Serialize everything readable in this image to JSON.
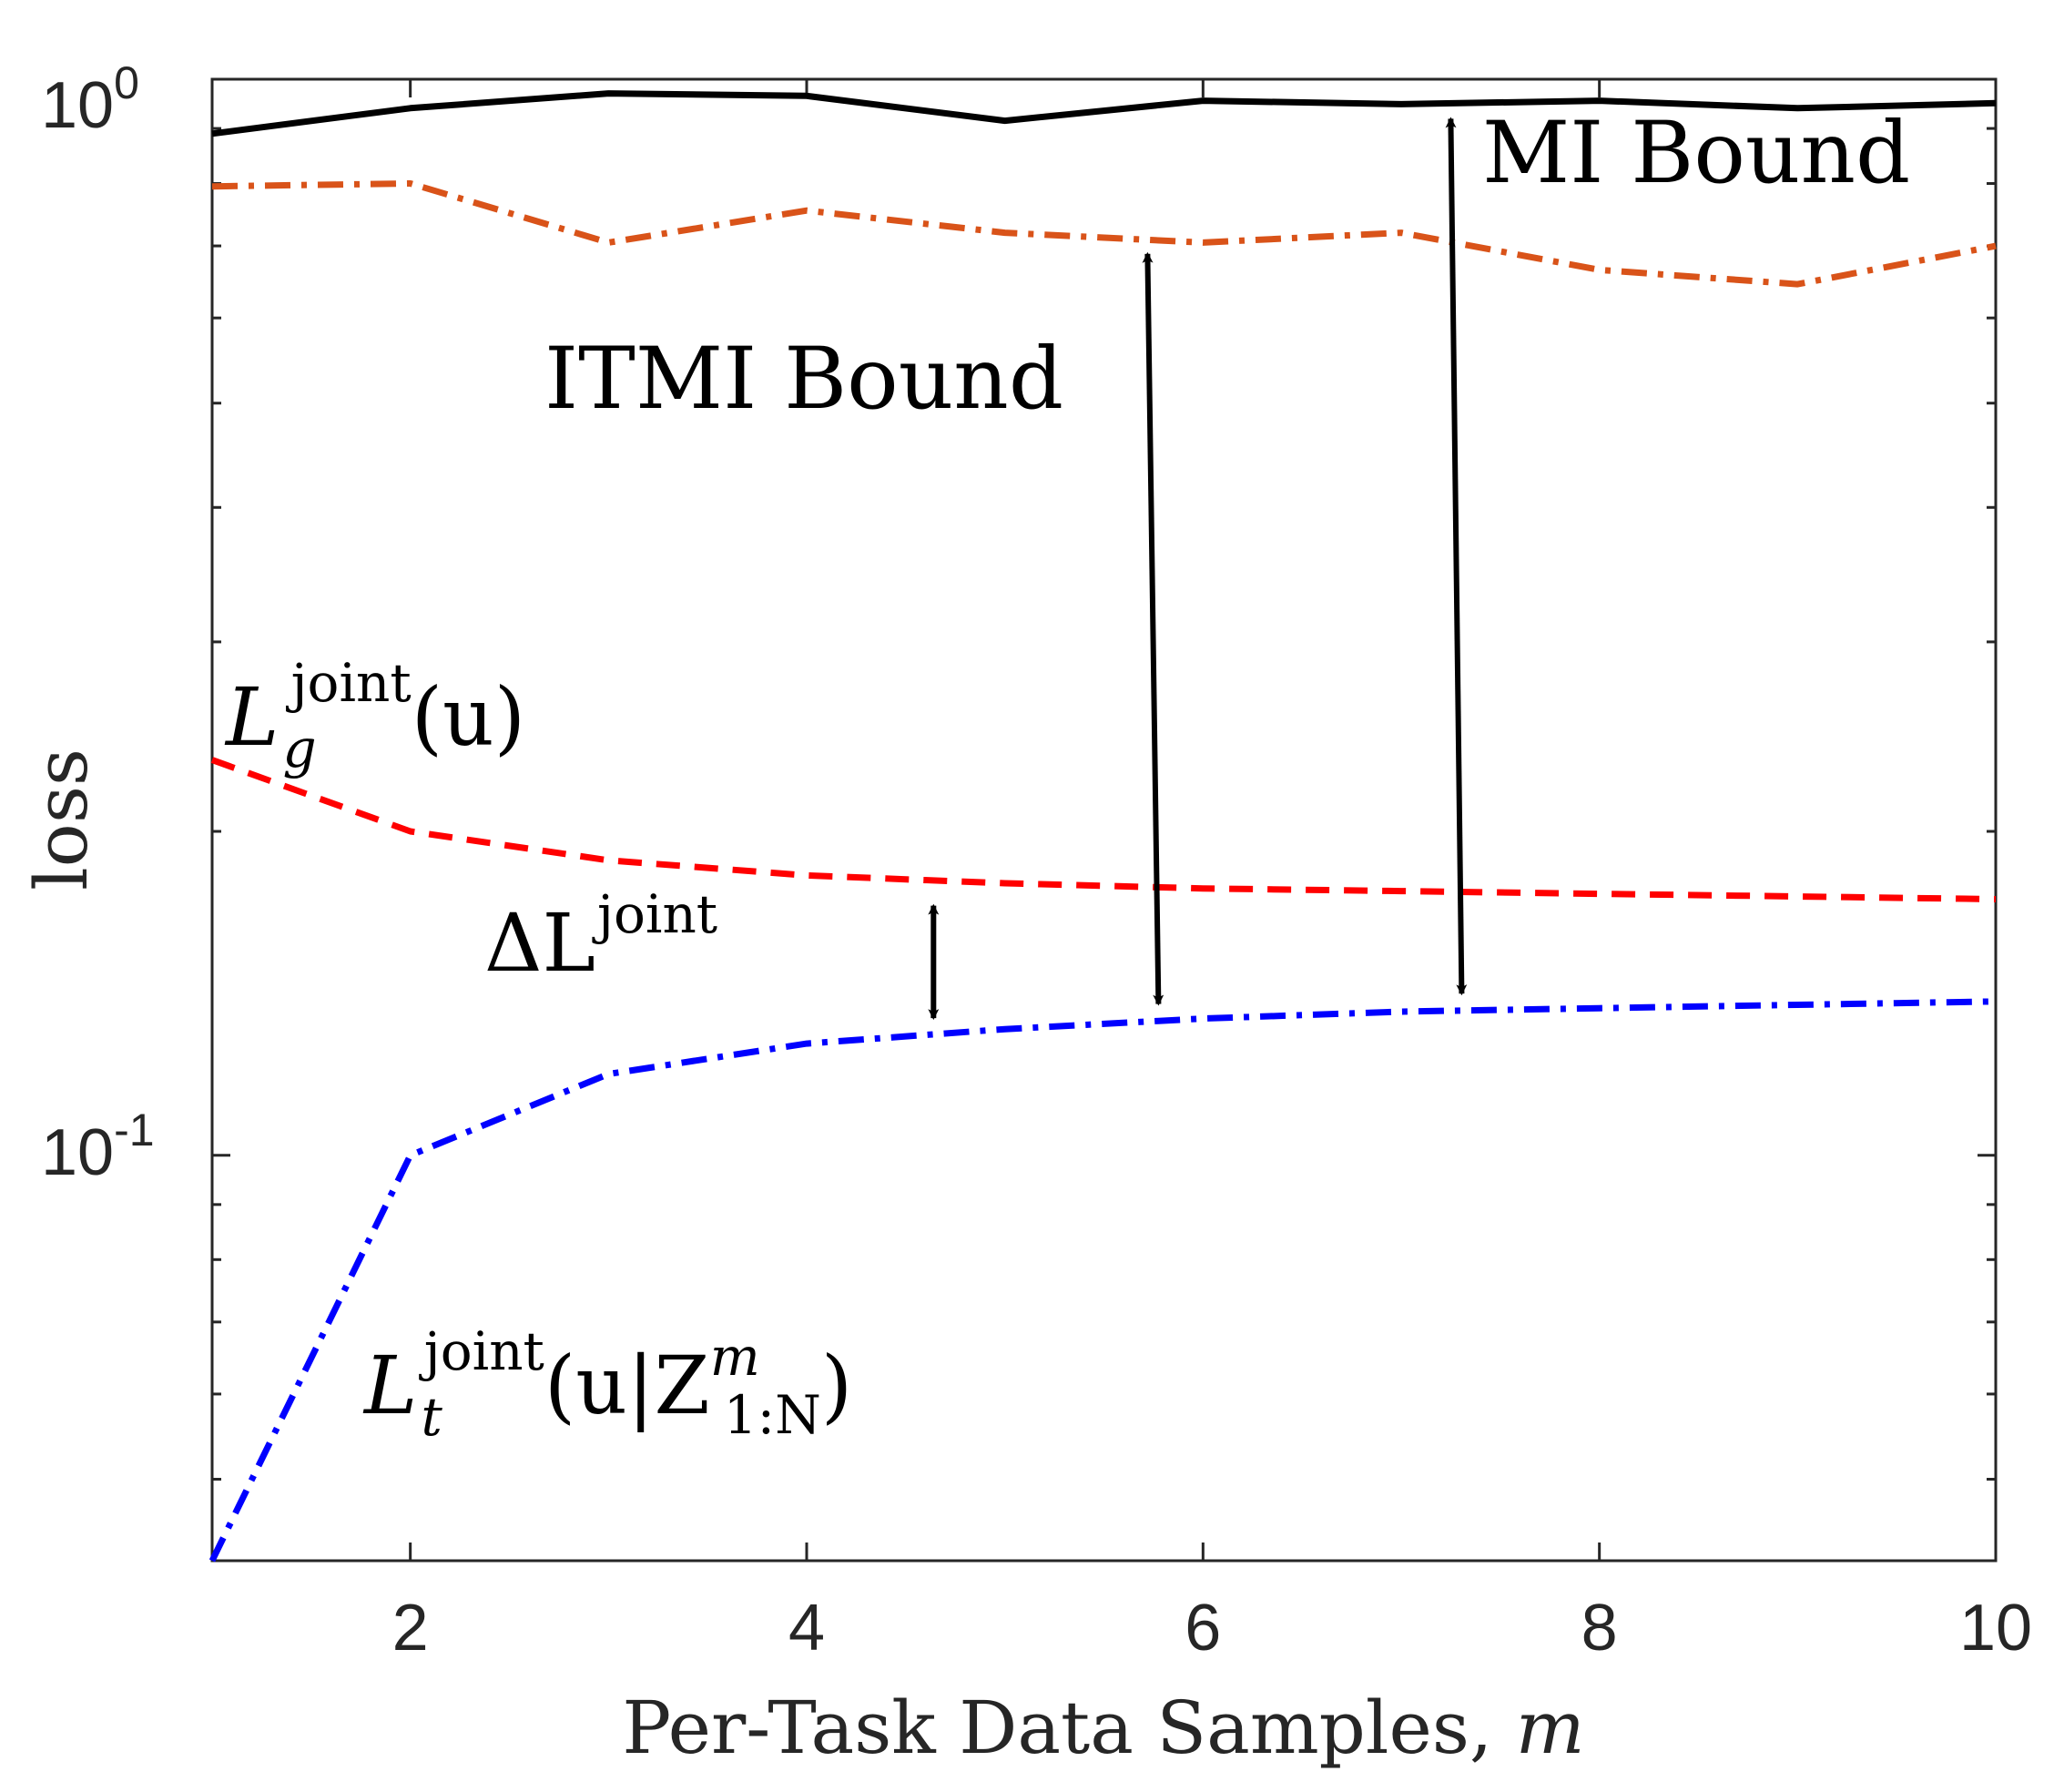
{
  "chart_data": {
    "type": "line",
    "title": "",
    "xlabel": "Per-Task Data Samples, m",
    "xlabel_parts": {
      "text": "Per-Task Data Samples, ",
      "var": "m"
    },
    "ylabel": "loss",
    "xlim": [
      1,
      10
    ],
    "ylim": [
      0.042,
      1.0
    ],
    "yscale": "log",
    "grid": false,
    "x": [
      1,
      2,
      3,
      4,
      5,
      6,
      7,
      8,
      9,
      10
    ],
    "xticks": [
      2,
      4,
      6,
      8,
      10
    ],
    "xtick_labels": [
      "2",
      "4",
      "6",
      "8",
      "10"
    ],
    "yticks": [
      0.1,
      1.0
    ],
    "ytick_labels": [
      {
        "base": "10",
        "exp": "-1"
      },
      {
        "base": "10",
        "exp": "0"
      }
    ],
    "series": [
      {
        "name": "MI Bound",
        "style": "solid",
        "color": "#000000",
        "values": [
          0.89,
          0.94,
          0.97,
          0.965,
          0.915,
          0.955,
          0.948,
          0.955,
          0.94,
          0.95
        ]
      },
      {
        "name": "ITMI Bound",
        "style": "dashdot",
        "color": "#D95319",
        "values": [
          0.795,
          0.8,
          0.705,
          0.755,
          0.72,
          0.705,
          0.72,
          0.665,
          0.645,
          0.7
        ]
      },
      {
        "name": "L_g^joint(u)",
        "style": "dashed",
        "color": "#FF0000",
        "values": [
          0.233,
          0.2,
          0.188,
          0.182,
          0.179,
          0.177,
          0.176,
          0.175,
          0.174,
          0.173
        ]
      },
      {
        "name": "L_t^joint(u|Z_1:N^m)",
        "style": "dashdot",
        "color": "#0000FF",
        "values": [
          0.042,
          0.1,
          0.119,
          0.127,
          0.131,
          0.134,
          0.136,
          0.137,
          0.138,
          0.139
        ]
      }
    ],
    "annotations": {
      "mi_bound": "MI Bound",
      "itmi_bound": "ITMI Bound",
      "delta": {
        "symbol": "ΔL",
        "sup": "joint"
      },
      "lg": {
        "L": "L",
        "sub": "g",
        "sup": "joint",
        "arg": "(u)"
      },
      "lt": {
        "L": "L",
        "sub": "t",
        "sup": "joint",
        "arg_open": "(u|Z",
        "arg_sup": "m",
        "arg_sub": "1:N",
        "arg_close": ")"
      }
    },
    "double_arrows": [
      {
        "name": "delta-arrow",
        "x": 4.64,
        "from": 0.176,
        "to": 0.13
      },
      {
        "name": "itmi-arrow",
        "x": 5.72,
        "from": 0.71,
        "to": 0.134
      },
      {
        "name": "mi-arrow",
        "x": 7.25,
        "from": 0.948,
        "to": 0.137
      }
    ]
  }
}
